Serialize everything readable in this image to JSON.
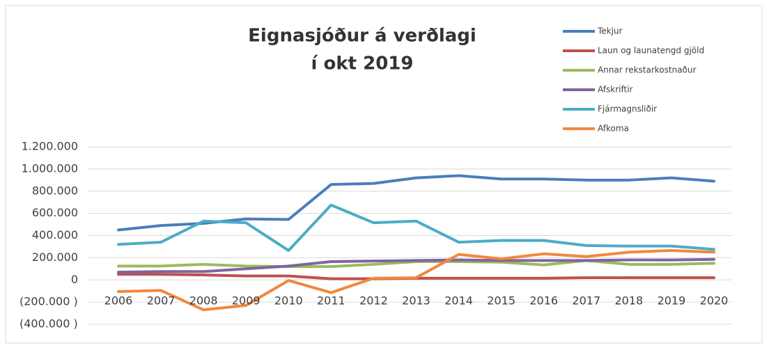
{
  "chart_data": {
    "type": "line",
    "title": [
      "Eignasjóður á verðlagi",
      "í okt 2019"
    ],
    "categories": [
      "2006",
      "2007",
      "2008",
      "2009",
      "2010",
      "2011",
      "2012",
      "2013",
      "2014",
      "2015",
      "2016",
      "2017",
      "2018",
      "2019",
      "2020"
    ],
    "series": [
      {
        "name": "Tekjur",
        "color": "#4a7ebb",
        "values": [
          450000,
          490000,
          510000,
          550000,
          545000,
          860000,
          870000,
          920000,
          940000,
          910000,
          910000,
          900000,
          900000,
          920000,
          890000
        ]
      },
      {
        "name": "Laun og launatengd gjöld",
        "color": "#c0504d",
        "values": [
          50000,
          50000,
          45000,
          35000,
          35000,
          10000,
          10000,
          15000,
          15000,
          15000,
          15000,
          20000,
          20000,
          20000,
          20000
        ]
      },
      {
        "name": "Annar rekstarkostnaður",
        "color": "#9bbb59",
        "values": [
          125000,
          125000,
          140000,
          125000,
          120000,
          120000,
          140000,
          165000,
          165000,
          160000,
          135000,
          175000,
          140000,
          140000,
          150000
        ]
      },
      {
        "name": "Afskriftir",
        "color": "#8064a2",
        "values": [
          70000,
          75000,
          75000,
          100000,
          125000,
          165000,
          170000,
          175000,
          180000,
          175000,
          175000,
          175000,
          180000,
          180000,
          185000
        ]
      },
      {
        "name": "Fjármagnsliðir",
        "color": "#4bacc6",
        "values": [
          320000,
          340000,
          530000,
          515000,
          265000,
          675000,
          515000,
          530000,
          340000,
          355000,
          355000,
          310000,
          305000,
          305000,
          275000
        ]
      },
      {
        "name": "Afkoma",
        "color": "#f0883e",
        "values": [
          -105000,
          -95000,
          -270000,
          -230000,
          -5000,
          -115000,
          15000,
          20000,
          230000,
          190000,
          235000,
          210000,
          250000,
          265000,
          250000
        ]
      }
    ],
    "ylim": [
      -400000,
      1200000
    ],
    "yticks": [
      {
        "value": -400000,
        "label": "(400.000 )"
      },
      {
        "value": -200000,
        "label": "(200.000 )"
      },
      0,
      {
        "value": 200000,
        "label": "200.000"
      },
      {
        "value": 400000,
        "label": "400.000"
      },
      {
        "value": 600000,
        "label": "600.000"
      },
      {
        "value": 800000,
        "label": "800.000"
      },
      {
        "value": 1000000,
        "label": "1.000.000"
      },
      {
        "value": 1200000,
        "label": "1.200.000"
      }
    ],
    "grid": true,
    "legend": "top-right"
  }
}
